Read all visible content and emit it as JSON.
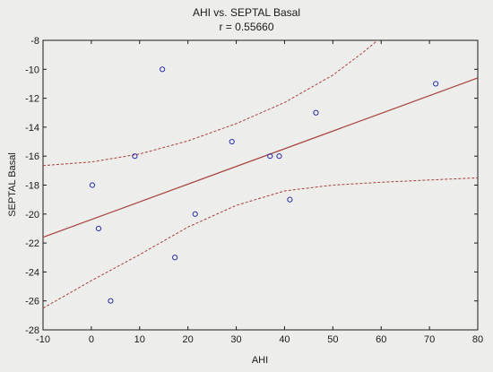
{
  "chart_data": {
    "type": "scatter",
    "title": "AHI vs. SEPTAL Basal",
    "subtitle": "r = 0.55660",
    "xlabel": "AHI",
    "ylabel": "SEPTAL Basal",
    "xlim": [
      -10,
      80
    ],
    "ylim": [
      -28,
      -8
    ],
    "x_ticks": [
      -10,
      0,
      10,
      20,
      30,
      40,
      50,
      60,
      70,
      80
    ],
    "y_ticks": [
      -8,
      -10,
      -12,
      -14,
      -16,
      -18,
      -20,
      -22,
      -24,
      -26,
      -28
    ],
    "grid": false,
    "legend": "none",
    "points": [
      {
        "x": 0.2,
        "y": -18
      },
      {
        "x": 1.5,
        "y": -21
      },
      {
        "x": 4.0,
        "y": -26
      },
      {
        "x": 9.0,
        "y": -16
      },
      {
        "x": 14.7,
        "y": -10
      },
      {
        "x": 17.3,
        "y": -23
      },
      {
        "x": 21.5,
        "y": -20
      },
      {
        "x": 29.1,
        "y": -15
      },
      {
        "x": 37.0,
        "y": -16
      },
      {
        "x": 38.9,
        "y": -16
      },
      {
        "x": 41.1,
        "y": -19
      },
      {
        "x": 46.5,
        "y": -13
      },
      {
        "x": 71.3,
        "y": -11
      }
    ],
    "regression": {
      "line_x": [
        -10,
        80
      ],
      "line_y": [
        -21.6,
        -10.6
      ],
      "ci_upper_x": [
        -10,
        0,
        10,
        20,
        30,
        40,
        50,
        56,
        60
      ],
      "ci_upper_y": [
        -16.65,
        -16.4,
        -15.85,
        -14.95,
        -13.75,
        -12.3,
        -10.4,
        -8.9,
        -7.8
      ],
      "ci_lower_x": [
        -10,
        0,
        10,
        20,
        30,
        40,
        50,
        60,
        70,
        80
      ],
      "ci_lower_y": [
        -26.5,
        -24.6,
        -22.8,
        -20.9,
        -19.4,
        -18.4,
        -18.0,
        -17.8,
        -17.65,
        -17.5
      ]
    },
    "colors": {
      "points": "#2b2fa8",
      "regression": "#a8413f",
      "background": "#ededeb",
      "axis": "#1a1a1a"
    }
  }
}
